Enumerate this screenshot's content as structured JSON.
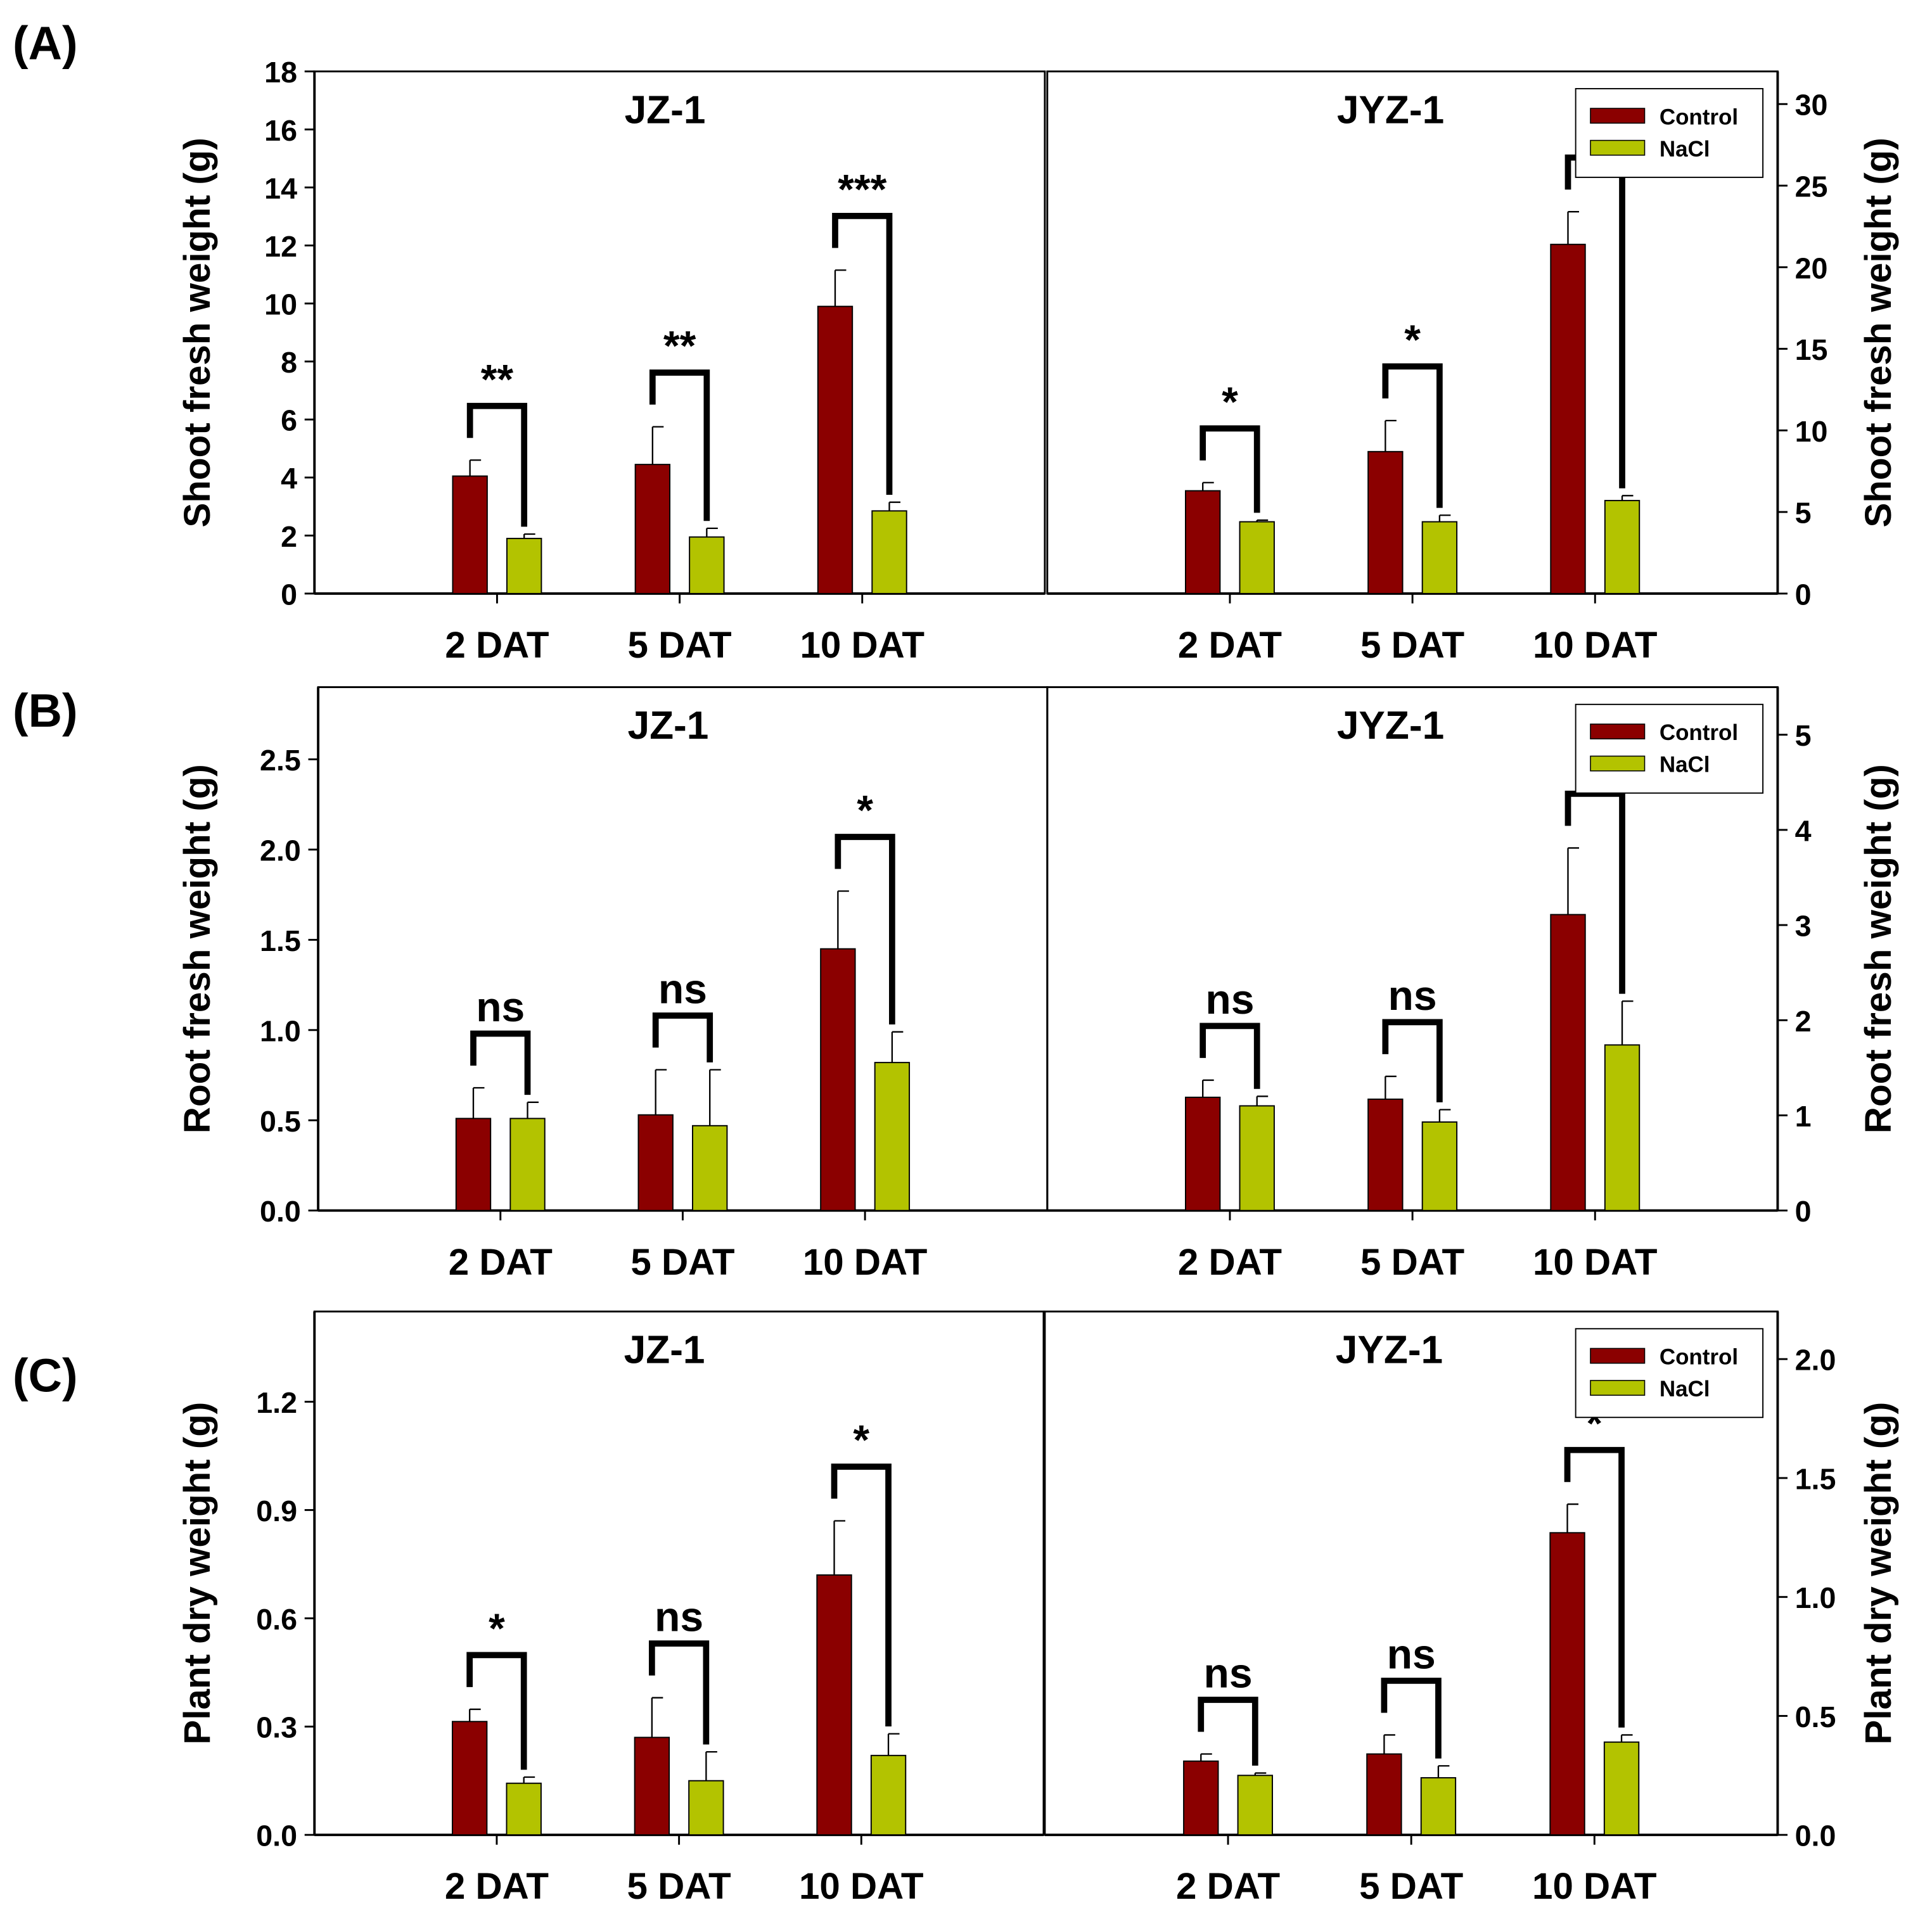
{
  "colors": {
    "control": "#8b0000",
    "nacl": "#b3c300"
  },
  "panel_labels": [
    "(A)",
    "(B)",
    "(C)"
  ],
  "chart_data": [
    {
      "type": "bar",
      "panel": "(A)",
      "title": "JZ-1",
      "ylabel": "Shoot fresh weight (g)",
      "axis_side": "left",
      "ylim": [
        0,
        18
      ],
      "yticks": [
        "0",
        "2",
        "4",
        "6",
        "8",
        "10",
        "12",
        "14",
        "16",
        "18"
      ],
      "ytick_values": [
        0,
        2,
        4,
        6,
        8,
        10,
        12,
        14,
        16,
        18
      ],
      "categories": [
        "2 DAT",
        "5 DAT",
        "10 DAT"
      ],
      "series": [
        {
          "name": "Control",
          "values": [
            4.05,
            4.45,
            9.9
          ],
          "errors": [
            0.55,
            1.3,
            1.25
          ]
        },
        {
          "name": "NaCl",
          "values": [
            1.9,
            1.95,
            2.85
          ],
          "errors": [
            0.15,
            0.3,
            0.3
          ]
        }
      ],
      "significance": [
        "**",
        "**",
        "***"
      ],
      "legend": null
    },
    {
      "type": "bar",
      "panel": "(A)",
      "title": "JYZ-1",
      "ylabel": "Shoot fresh weight (g)",
      "axis_side": "right",
      "ylim": [
        0,
        32
      ],
      "yticks": [
        "0",
        "5",
        "10",
        "15",
        "20",
        "25",
        "30"
      ],
      "ytick_values": [
        0,
        5,
        10,
        15,
        20,
        25,
        30
      ],
      "categories": [
        "2 DAT",
        "5 DAT",
        "10 DAT"
      ],
      "series": [
        {
          "name": "Control",
          "values": [
            6.3,
            8.7,
            21.4
          ],
          "errors": [
            0.5,
            1.9,
            2.0
          ]
        },
        {
          "name": "NaCl",
          "values": [
            4.4,
            4.4,
            5.7
          ],
          "errors": [
            0.1,
            0.4,
            0.3
          ]
        }
      ],
      "significance": [
        "*",
        "*",
        "**"
      ],
      "legend": "top-right"
    },
    {
      "type": "bar",
      "panel": "(B)",
      "title": "JZ-1",
      "ylabel": "Root fresh weight (g)",
      "axis_side": "left",
      "ylim": [
        0,
        2.9
      ],
      "yticks": [
        "0.0",
        "0.5",
        "1.0",
        "1.5",
        "2.0",
        "2.5"
      ],
      "ytick_values": [
        0,
        0.5,
        1,
        1.5,
        2,
        2.5
      ],
      "categories": [
        "2 DAT",
        "5 DAT",
        "10 DAT"
      ],
      "series": [
        {
          "name": "Control",
          "values": [
            0.51,
            0.53,
            1.45
          ],
          "errors": [
            0.17,
            0.25,
            0.32
          ]
        },
        {
          "name": "NaCl",
          "values": [
            0.51,
            0.47,
            0.82
          ],
          "errors": [
            0.09,
            0.31,
            0.17
          ]
        }
      ],
      "significance": [
        "ns",
        "ns",
        "*"
      ],
      "legend": null
    },
    {
      "type": "bar",
      "panel": "(B)",
      "title": "JYZ-1",
      "ylabel": "Root fresh weight (g)",
      "axis_side": "right",
      "ylim": [
        0,
        5.5
      ],
      "yticks": [
        "0",
        "1",
        "2",
        "3",
        "4",
        "5"
      ],
      "ytick_values": [
        0,
        1,
        2,
        3,
        4,
        5
      ],
      "categories": [
        "2 DAT",
        "5 DAT",
        "10 DAT"
      ],
      "series": [
        {
          "name": "Control",
          "values": [
            1.19,
            1.17,
            3.11
          ],
          "errors": [
            0.18,
            0.24,
            0.7
          ]
        },
        {
          "name": "NaCl",
          "values": [
            1.1,
            0.93,
            1.74
          ],
          "errors": [
            0.1,
            0.13,
            0.46
          ]
        }
      ],
      "significance": [
        "ns",
        "ns",
        "*"
      ],
      "legend": "top-right"
    },
    {
      "type": "bar",
      "panel": "(C)",
      "title": "JZ-1",
      "ylabel": "Plant dry weight (g)",
      "axis_side": "left",
      "ylim": [
        0,
        1.45
      ],
      "yticks": [
        "0.0",
        "0.3",
        "0.6",
        "0.9",
        "1.2"
      ],
      "ytick_values": [
        0,
        0.3,
        0.6,
        0.9,
        1.2
      ],
      "categories": [
        "2 DAT",
        "5 DAT",
        "10 DAT"
      ],
      "series": [
        {
          "name": "Control",
          "values": [
            0.314,
            0.27,
            0.72
          ],
          "errors": [
            0.034,
            0.11,
            0.15
          ]
        },
        {
          "name": "NaCl",
          "values": [
            0.143,
            0.15,
            0.22
          ],
          "errors": [
            0.017,
            0.08,
            0.06
          ]
        }
      ],
      "significance": [
        "*",
        "ns",
        "*"
      ],
      "legend": null
    },
    {
      "type": "bar",
      "panel": "(C)",
      "title": "JYZ-1",
      "ylabel": "Plant dry weight (g)",
      "axis_side": "right",
      "ylim": [
        0,
        2.2
      ],
      "yticks": [
        "0.0",
        "0.5",
        "1.0",
        "1.5",
        "2.0"
      ],
      "ytick_values": [
        0,
        0.5,
        1,
        1.5,
        2
      ],
      "categories": [
        "2 DAT",
        "5 DAT",
        "10 DAT"
      ],
      "series": [
        {
          "name": "Control",
          "values": [
            0.31,
            0.34,
            1.27
          ],
          "errors": [
            0.03,
            0.08,
            0.12
          ]
        },
        {
          "name": "NaCl",
          "values": [
            0.25,
            0.24,
            0.39
          ],
          "errors": [
            0.01,
            0.05,
            0.03
          ]
        }
      ],
      "significance": [
        "ns",
        "ns",
        "*"
      ],
      "legend": "top-right"
    }
  ]
}
